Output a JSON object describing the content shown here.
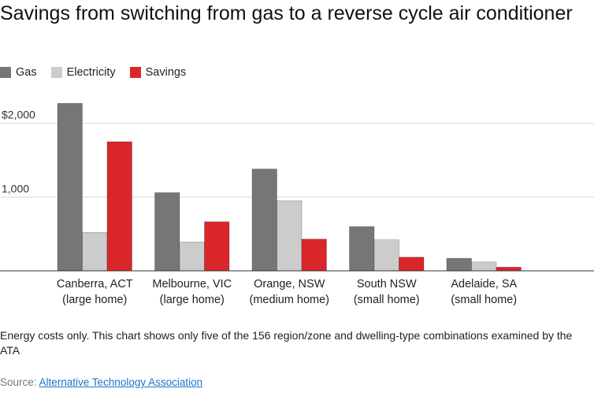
{
  "title": "Savings from switching from gas to a reverse cycle air conditioner",
  "note": "Energy costs only. This chart shows only five of the 156 region/zone and dwelling-type combinations examined by the ATA",
  "source": {
    "prefix": "Source: ",
    "link_text": "Alternative Technology Association"
  },
  "colors": {
    "gas": "#767676",
    "electricity": "#cccccc",
    "savings": "#d9262b",
    "grid": "#d9d9d9",
    "baseline": "#333333",
    "link": "#1a73c8"
  },
  "chart_data": {
    "type": "bar",
    "title": "Savings from switching from gas to a reverse cycle air conditioner",
    "legend_position": "top-left",
    "grid": true,
    "ylim": [
      0,
      2200
    ],
    "yticks": [
      {
        "value": 1000,
        "label": "1,000"
      },
      {
        "value": 2000,
        "label": "$2,000"
      }
    ],
    "categories": [
      [
        "Canberra, ACT",
        "(large home)"
      ],
      [
        "Melbourne, VIC",
        "(large home)"
      ],
      [
        "Orange, NSW",
        "(medium home)"
      ],
      [
        "South NSW",
        "(small home)"
      ],
      [
        "Adelaide, SA",
        "(small home)"
      ]
    ],
    "series": [
      {
        "name": "Gas",
        "key": "gas",
        "values": [
          2270,
          1060,
          1380,
          600,
          170
        ]
      },
      {
        "name": "Electricity",
        "key": "electricity",
        "values": [
          520,
          390,
          950,
          420,
          120
        ]
      },
      {
        "name": "Savings",
        "key": "savings",
        "values": [
          1750,
          665,
          430,
          185,
          50
        ]
      }
    ]
  }
}
